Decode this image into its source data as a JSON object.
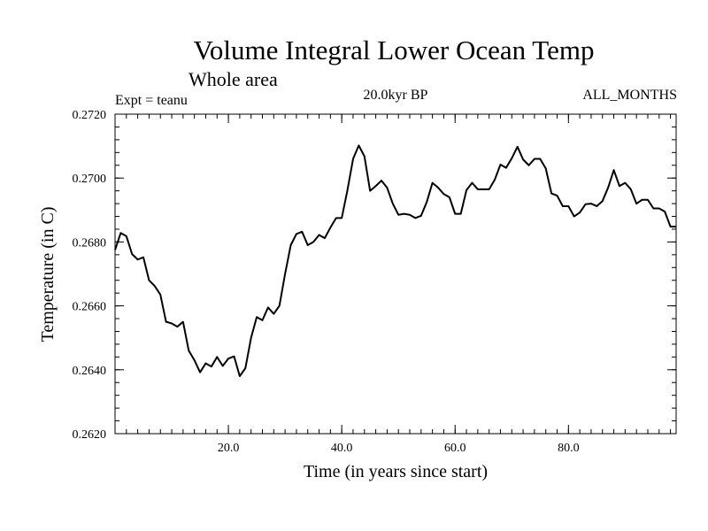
{
  "chart_data": {
    "type": "line",
    "title": "Volume Integral Lower Ocean Temp",
    "subtitle": "Whole area",
    "experiment": "Expt = teanu",
    "period": "20.0kyr BP",
    "months": "ALL_MONTHS",
    "xlabel": "Time (in years since start)",
    "ylabel": "Temperature (in C)",
    "xlim": [
      0,
      99
    ],
    "ylim": [
      0.262,
      0.272
    ],
    "x_ticks": [
      20,
      40,
      60,
      80
    ],
    "x_tick_labels": [
      "20.0",
      "40.0",
      "60.0",
      "80.0"
    ],
    "y_ticks": [
      0.262,
      0.264,
      0.266,
      0.268,
      0.27,
      0.272
    ],
    "y_tick_labels": [
      "0.2620",
      "0.2640",
      "0.2660",
      "0.2680",
      "0.2700",
      "0.2720"
    ],
    "x_minor_step": 2,
    "y_minor_step": 0.0004,
    "grid": false,
    "series": [
      {
        "name": "Temperature",
        "x": [
          0,
          1,
          2,
          3,
          4,
          5,
          6,
          7,
          8,
          9,
          10,
          11,
          12,
          13,
          14,
          15,
          16,
          17,
          18,
          19,
          20,
          21,
          22,
          23,
          24,
          25,
          26,
          27,
          28,
          29,
          30,
          31,
          32,
          33,
          34,
          35,
          36,
          37,
          38,
          39,
          40,
          41,
          42,
          43,
          44,
          45,
          46,
          47,
          48,
          49,
          50,
          51,
          52,
          53,
          54,
          55,
          56,
          57,
          58,
          59,
          60,
          61,
          62,
          63,
          64,
          65,
          66,
          67,
          68,
          69,
          70,
          71,
          72,
          73,
          74,
          75,
          76,
          77,
          78,
          79,
          80,
          81,
          82,
          83,
          84,
          85,
          86,
          87,
          88,
          89,
          90,
          91,
          92,
          93,
          94,
          95,
          96,
          97,
          98,
          99
        ],
        "values": [
          0.26775,
          0.26828,
          0.26818,
          0.26762,
          0.26745,
          0.26752,
          0.2668,
          0.26662,
          0.26635,
          0.2655,
          0.26545,
          0.26535,
          0.2655,
          0.2646,
          0.2643,
          0.26392,
          0.2642,
          0.2641,
          0.2644,
          0.26412,
          0.26435,
          0.26442,
          0.2638,
          0.26405,
          0.265,
          0.26565,
          0.26555,
          0.26595,
          0.26575,
          0.266,
          0.267,
          0.2679,
          0.26825,
          0.26832,
          0.2679,
          0.268,
          0.26822,
          0.26812,
          0.26845,
          0.26875,
          0.26875,
          0.26962,
          0.2706,
          0.27102,
          0.27068,
          0.2696,
          0.26975,
          0.26992,
          0.2697,
          0.2692,
          0.26885,
          0.26888,
          0.26885,
          0.26875,
          0.26882,
          0.26925,
          0.26985,
          0.2697,
          0.2695,
          0.2694,
          0.26888,
          0.26888,
          0.26962,
          0.26985,
          0.26965,
          0.26965,
          0.26965,
          0.26995,
          0.27042,
          0.27032,
          0.27062,
          0.27098,
          0.27058,
          0.2704,
          0.2706,
          0.2706,
          0.2703,
          0.26952,
          0.26945,
          0.26912,
          0.26912,
          0.2688,
          0.26892,
          0.26918,
          0.2692,
          0.26912,
          0.26928,
          0.2697,
          0.27025,
          0.26975,
          0.26985,
          0.26965,
          0.2692,
          0.26932,
          0.26932,
          0.26905,
          0.26905,
          0.26895,
          0.26848,
          0.26848
        ]
      }
    ]
  }
}
